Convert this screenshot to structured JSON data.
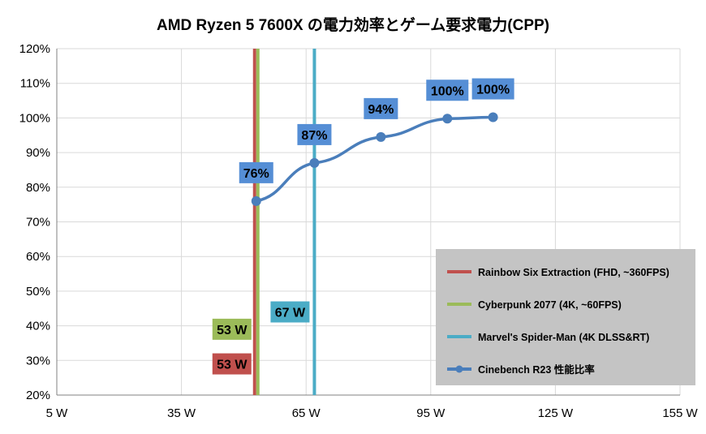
{
  "chart_data": {
    "type": "line",
    "title": "AMD Ryzen 5 7600X の電力効率とゲーム要求電力(CPP)",
    "xlabel": "",
    "ylabel": "",
    "xlim": [
      5,
      155
    ],
    "ylim": [
      20,
      120
    ],
    "x_ticks": [
      5,
      35,
      65,
      95,
      125,
      155
    ],
    "x_tick_labels": [
      "5 W",
      "35 W",
      "65 W",
      "95 W",
      "125 W",
      "155 W"
    ],
    "y_ticks": [
      20,
      30,
      40,
      50,
      60,
      70,
      80,
      90,
      100,
      110,
      120
    ],
    "y_tick_labels": [
      "20%",
      "30%",
      "40%",
      "50%",
      "60%",
      "70%",
      "80%",
      "90%",
      "100%",
      "110%",
      "120%"
    ],
    "grid": true,
    "legend_position": "bottom-right",
    "series": [
      {
        "name": "Cinebench R23 性能比率",
        "color": "#4a7ebb",
        "x": [
          53,
          67,
          83,
          99,
          110
        ],
        "y": [
          76,
          87,
          94.5,
          99.8,
          100.2
        ],
        "labels": [
          "76%",
          "87%",
          "94%",
          "100%",
          "100%"
        ]
      }
    ],
    "reference_lines": [
      {
        "name": "Rainbow Six Extraction (FHD, ~360FPS)",
        "x": 53,
        "label": "53 W",
        "color": "#c0504d"
      },
      {
        "name": "Cyberpunk 2077 (4K, ~60FPS)",
        "x": 53,
        "label": "53 W",
        "color": "#9bbb59"
      },
      {
        "name": "Marvel's Spider-Man (4K DLSS&RT)",
        "x": 67,
        "label": "67 W",
        "color": "#4bacc6"
      }
    ],
    "reference_label_y": [
      29,
      39,
      44
    ]
  }
}
